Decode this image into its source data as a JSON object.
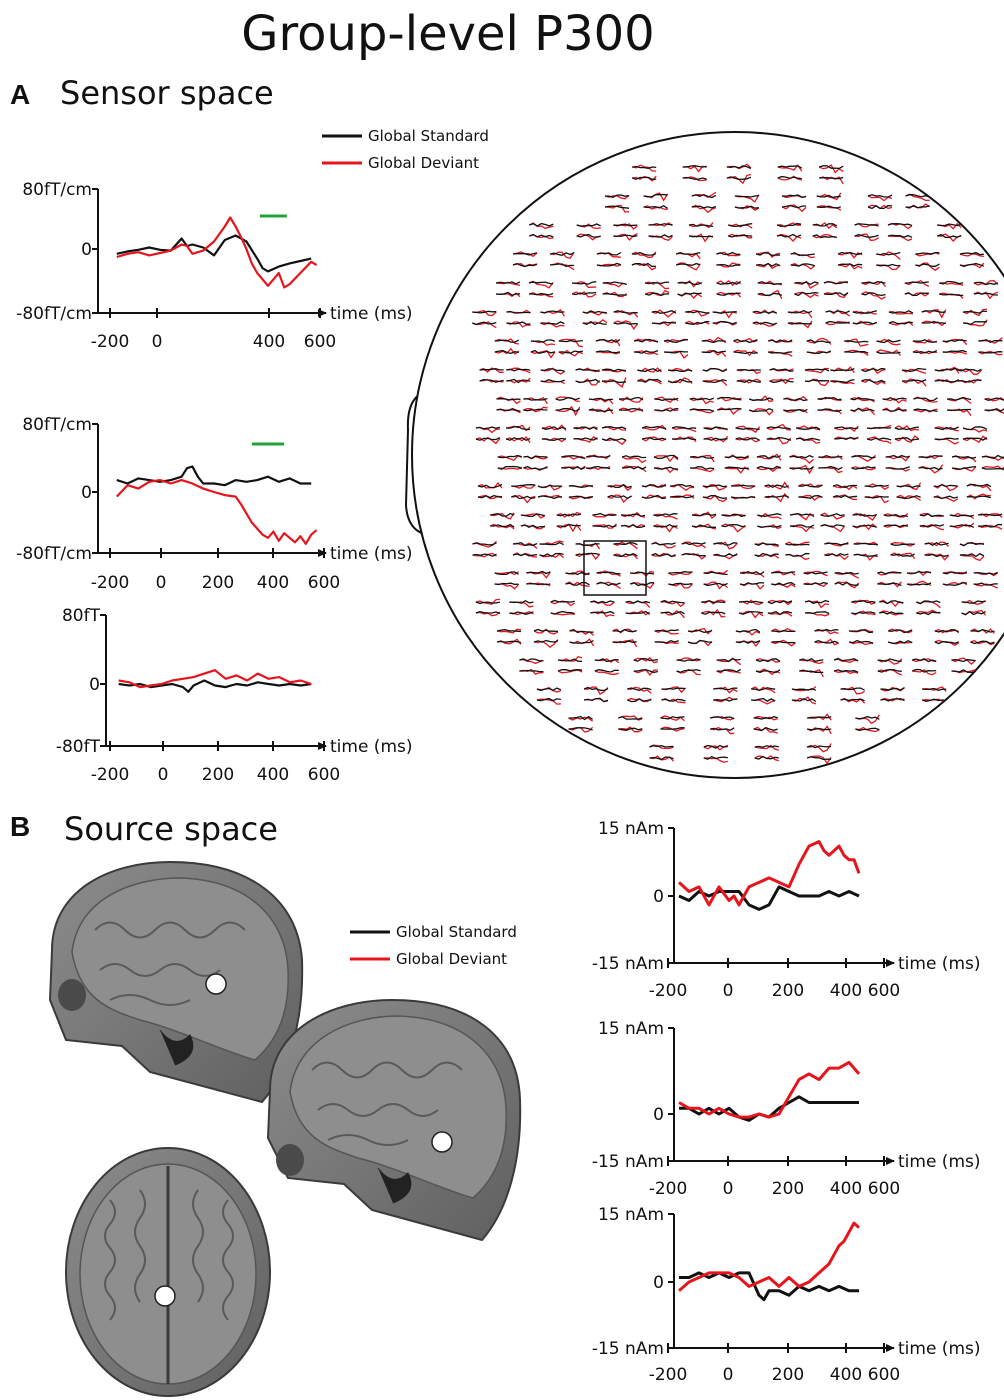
{
  "figure": {
    "title": "Group-level P300",
    "panel_a": {
      "letter": "A",
      "title": "Sensor space"
    },
    "panel_b": {
      "letter": "B",
      "title": "Source space"
    },
    "legend": [
      {
        "label": "Global Standard",
        "color": "#111111"
      },
      {
        "label": "Global Deviant",
        "color": "#e8141c"
      }
    ],
    "significance_color": "#22a33a",
    "helmet_icon": "meg-sensor-helmet-layout-icon",
    "brain_icons": [
      "sagittal-mri-slice-1-icon",
      "sagittal-mri-slice-2-icon",
      "axial-mri-slice-icon"
    ]
  },
  "chart_data": [
    {
      "type": "line",
      "panel": "A",
      "xlabel": "time (ms)",
      "ylabel": "",
      "xlim": [
        -200,
        600
      ],
      "ylim": [
        -80,
        80
      ],
      "xticks": [
        -200,
        0,
        400,
        600
      ],
      "xtick_labels": [
        "-200",
        "0",
        "400",
        "600"
      ],
      "ytick_labels": [
        "80fT/cm",
        "0",
        "-80fT/cm"
      ],
      "significance": [
        370,
        470
      ],
      "series": [
        {
          "name": "Global Standard",
          "color": "#111111",
          "x": [
            -160,
            -120,
            -80,
            -40,
            0,
            40,
            80,
            100,
            120,
            160,
            200,
            240,
            280,
            320,
            360,
            380,
            400,
            440,
            480,
            520,
            560
          ],
          "y": [
            -6,
            -3,
            -1,
            2,
            -1,
            -2,
            14,
            4,
            6,
            2,
            -8,
            12,
            18,
            10,
            -12,
            -24,
            -28,
            -22,
            -18,
            -15,
            -12
          ]
        },
        {
          "name": "Global Deviant",
          "color": "#e8141c",
          "x": [
            -160,
            -120,
            -80,
            -40,
            0,
            40,
            80,
            100,
            120,
            160,
            200,
            240,
            260,
            280,
            300,
            320,
            340,
            360,
            400,
            420,
            440,
            460,
            480,
            520,
            560,
            580
          ],
          "y": [
            -10,
            -6,
            -4,
            -8,
            -5,
            -2,
            6,
            4,
            -6,
            -2,
            10,
            30,
            42,
            30,
            16,
            0,
            -18,
            -30,
            -46,
            -38,
            -30,
            -48,
            -44,
            -30,
            -16,
            -20
          ]
        }
      ]
    },
    {
      "type": "line",
      "panel": "A",
      "xlabel": "time (ms)",
      "ylabel": "",
      "xlim": [
        -200,
        600
      ],
      "ylim": [
        -80,
        80
      ],
      "xticks": [
        -200,
        0,
        200,
        400,
        600
      ],
      "xtick_labels": [
        "-200",
        "0",
        "200",
        "400",
        "600"
      ],
      "ytick_labels": [
        "80fT/cm",
        "0",
        "-80fT/cm"
      ],
      "significance": [
        340,
        460
      ],
      "series": [
        {
          "name": "Global Standard",
          "color": "#111111",
          "x": [
            -160,
            -120,
            -80,
            -40,
            0,
            40,
            80,
            100,
            120,
            140,
            160,
            200,
            240,
            280,
            320,
            360,
            400,
            440,
            480,
            520,
            560
          ],
          "y": [
            14,
            10,
            16,
            14,
            12,
            14,
            18,
            28,
            30,
            18,
            10,
            10,
            8,
            14,
            12,
            14,
            18,
            12,
            16,
            10,
            10
          ]
        },
        {
          "name": "Global Deviant",
          "color": "#e8141c",
          "x": [
            -160,
            -120,
            -80,
            -40,
            0,
            40,
            80,
            120,
            160,
            200,
            240,
            280,
            300,
            320,
            340,
            360,
            380,
            400,
            420,
            440,
            460,
            480,
            500,
            520,
            540,
            560,
            580
          ],
          "y": [
            -6,
            8,
            4,
            12,
            14,
            10,
            14,
            10,
            4,
            0,
            -4,
            -6,
            -16,
            -28,
            -40,
            -48,
            -56,
            -60,
            -52,
            -64,
            -54,
            -60,
            -66,
            -58,
            -68,
            -56,
            -50
          ]
        }
      ]
    },
    {
      "type": "line",
      "panel": "A",
      "xlabel": "time (ms)",
      "ylabel": "",
      "xlim": [
        -200,
        600
      ],
      "ylim": [
        -80,
        80
      ],
      "xticks": [
        -200,
        0,
        200,
        400,
        600
      ],
      "xtick_labels": [
        "-200",
        "0",
        "200",
        "400",
        "600"
      ],
      "ytick_labels": [
        "80fT",
        "0",
        "-80fT"
      ],
      "significance": null,
      "series": [
        {
          "name": "Global Standard",
          "color": "#111111",
          "x": [
            -160,
            -120,
            -80,
            -40,
            0,
            40,
            80,
            100,
            120,
            160,
            200,
            240,
            280,
            320,
            360,
            400,
            440,
            480,
            520,
            560
          ],
          "y": [
            0,
            -2,
            0,
            -4,
            -2,
            0,
            -4,
            -10,
            -2,
            4,
            -2,
            -4,
            0,
            -2,
            2,
            0,
            -2,
            0,
            -2,
            0
          ]
        },
        {
          "name": "Global Deviant",
          "color": "#e8141c",
          "x": [
            -160,
            -120,
            -80,
            -40,
            0,
            40,
            80,
            120,
            160,
            200,
            240,
            280,
            320,
            360,
            400,
            440,
            480,
            520,
            560
          ],
          "y": [
            4,
            2,
            -4,
            -2,
            0,
            4,
            6,
            8,
            12,
            16,
            6,
            10,
            4,
            12,
            6,
            8,
            2,
            4,
            0
          ]
        }
      ]
    },
    {
      "type": "line",
      "panel": "B",
      "xlabel": "time (ms)",
      "ylabel": "",
      "xlim": [
        -200,
        600
      ],
      "ylim": [
        -15,
        15
      ],
      "xticks": [
        -200,
        0,
        200,
        400,
        600
      ],
      "xtick_labels": [
        "-200",
        "0",
        "200",
        "400",
        "600"
      ],
      "ytick_labels": [
        "15 nAm",
        "0",
        "-15 nAm"
      ],
      "significance": null,
      "series": [
        {
          "name": "Global Standard",
          "color": "#111111",
          "x": [
            -180,
            -140,
            -100,
            -60,
            -20,
            20,
            60,
            100,
            140,
            180,
            220,
            260,
            300,
            340,
            380,
            420,
            460,
            500,
            540
          ],
          "y": [
            0,
            -1,
            1,
            0,
            1,
            1,
            1,
            -2,
            -3,
            -2,
            2,
            1,
            0,
            0,
            0,
            1,
            0,
            1,
            0
          ]
        },
        {
          "name": "Global Deviant",
          "color": "#e8141c",
          "x": [
            -180,
            -140,
            -100,
            -60,
            -20,
            20,
            40,
            60,
            100,
            140,
            180,
            220,
            260,
            300,
            340,
            380,
            400,
            420,
            440,
            460,
            480,
            500,
            520,
            540
          ],
          "y": [
            3,
            1,
            2,
            -2,
            2,
            -1,
            0,
            -2,
            2,
            3,
            4,
            3,
            2,
            7,
            11,
            12,
            10,
            9,
            10,
            11,
            9,
            8,
            8,
            5
          ]
        }
      ]
    },
    {
      "type": "line",
      "panel": "B",
      "xlabel": "time (ms)",
      "ylabel": "",
      "xlim": [
        -200,
        600
      ],
      "ylim": [
        -15,
        15
      ],
      "xticks": [
        -200,
        0,
        200,
        400,
        600
      ],
      "xtick_labels": [
        "-200",
        "0",
        "200",
        "400",
        "600"
      ],
      "ytick_labels": [
        "15 nAm",
        "0",
        "-15 nAm"
      ],
      "significance": null,
      "series": [
        {
          "name": "Global Standard",
          "color": "#111111",
          "x": [
            -180,
            -140,
            -100,
            -60,
            -20,
            20,
            60,
            100,
            140,
            180,
            220,
            260,
            300,
            340,
            380,
            420,
            460,
            500,
            540
          ],
          "y": [
            1,
            1,
            0,
            1,
            0,
            1,
            -1,
            -2,
            0,
            -1,
            1,
            2,
            3,
            2,
            2,
            2,
            2,
            2,
            2
          ]
        },
        {
          "name": "Global Deviant",
          "color": "#e8141c",
          "x": [
            -180,
            -140,
            -100,
            -60,
            -20,
            20,
            60,
            100,
            140,
            180,
            220,
            260,
            300,
            340,
            380,
            420,
            460,
            500,
            540
          ],
          "y": [
            2,
            1,
            1,
            0,
            1,
            0,
            -1,
            -1,
            0,
            -1,
            0,
            3,
            6,
            7,
            6,
            8,
            8,
            9,
            7
          ]
        }
      ]
    },
    {
      "type": "line",
      "panel": "B",
      "xlabel": "time (ms)",
      "ylabel": "",
      "xlim": [
        -200,
        600
      ],
      "ylim": [
        -15,
        15
      ],
      "xticks": [
        -200,
        0,
        200,
        400,
        600
      ],
      "xtick_labels": [
        "-200",
        "0",
        "200",
        "400",
        "600"
      ],
      "ytick_labels": [
        "15 nAm",
        "0",
        "-15 nAm"
      ],
      "significance": null,
      "series": [
        {
          "name": "Global Standard",
          "color": "#111111",
          "x": [
            -180,
            -140,
            -100,
            -60,
            -20,
            20,
            60,
            100,
            140,
            160,
            180,
            220,
            260,
            300,
            340,
            380,
            420,
            460,
            500,
            540
          ],
          "y": [
            1,
            1,
            2,
            1,
            2,
            1,
            2,
            2,
            -3,
            -4,
            -2,
            -2,
            -3,
            -1,
            -2,
            -1,
            -2,
            -1,
            -2,
            -2
          ]
        },
        {
          "name": "Global Deviant",
          "color": "#e8141c",
          "x": [
            -180,
            -140,
            -100,
            -60,
            -20,
            20,
            60,
            100,
            140,
            180,
            220,
            260,
            300,
            340,
            380,
            420,
            440,
            460,
            480,
            500,
            520,
            540
          ],
          "y": [
            -2,
            0,
            1,
            2,
            2,
            2,
            1,
            -1,
            0,
            1,
            -1,
            1,
            -1,
            0,
            2,
            4,
            6,
            8,
            9,
            11,
            13,
            12
          ]
        }
      ]
    }
  ]
}
